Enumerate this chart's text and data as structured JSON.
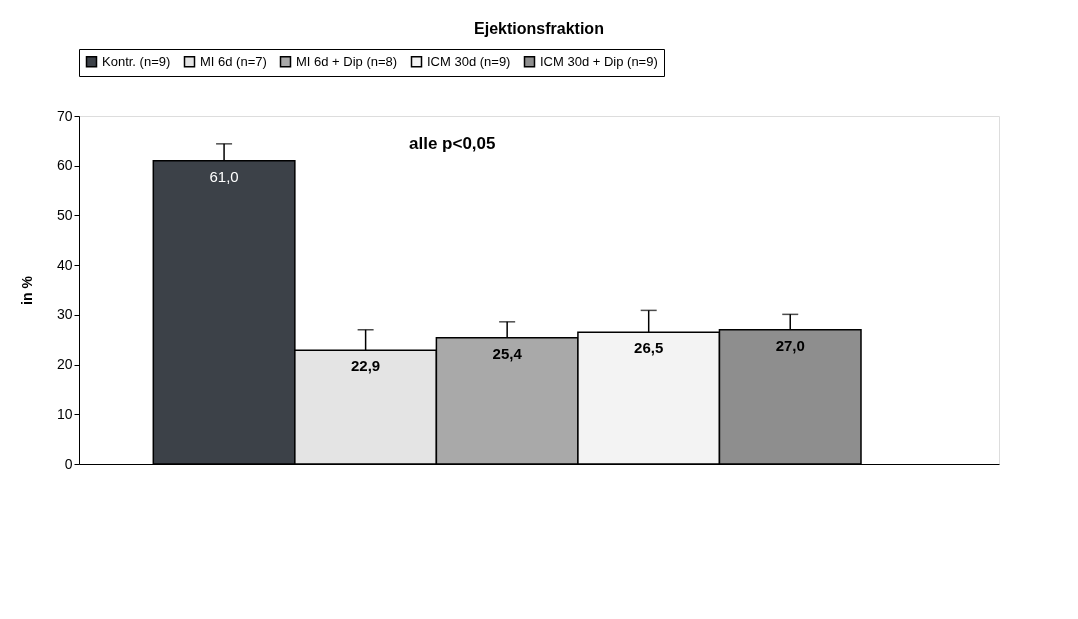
{
  "chart_data": {
    "type": "bar",
    "title": "Ejektionsfraktion",
    "ylabel": "in %",
    "categories": [
      null
    ],
    "series": [
      {
        "name": "Kontr. (n=9)",
        "color": "#3c4148",
        "values": [
          61.0
        ],
        "value_labels": [
          "61,0"
        ],
        "errors": [
          [
            61.0,
            64.4
          ]
        ]
      },
      {
        "name": "MI 6d (n=7)",
        "color": "#e4e4e4",
        "values": [
          22.9
        ],
        "value_labels": [
          "22,9"
        ],
        "errors": [
          [
            22.9,
            27.0
          ]
        ]
      },
      {
        "name": "MI 6d + Dip (n=8)",
        "color": "#a9a9a9",
        "values": [
          25.4
        ],
        "value_labels": [
          "25,4"
        ],
        "errors": [
          [
            25.4,
            28.6
          ]
        ]
      },
      {
        "name": "ICM 30d (n=9)",
        "color": "#f3f3f3",
        "values": [
          26.5
        ],
        "value_labels": [
          "26,5"
        ],
        "errors": [
          [
            26.5,
            30.9
          ]
        ]
      },
      {
        "name": "ICM 30d + Dip (n=9)",
        "color": "#8e8e8e",
        "values": [
          27.0
        ],
        "value_labels": [
          "27,0"
        ],
        "errors": [
          [
            27.0,
            30.1
          ]
        ]
      }
    ],
    "ylim": [
      0,
      70
    ],
    "yticks": [
      0,
      10,
      20,
      30,
      40,
      50,
      60,
      70
    ],
    "grid": false,
    "legend": "top",
    "annotations": [
      "alle p<0,05"
    ]
  }
}
